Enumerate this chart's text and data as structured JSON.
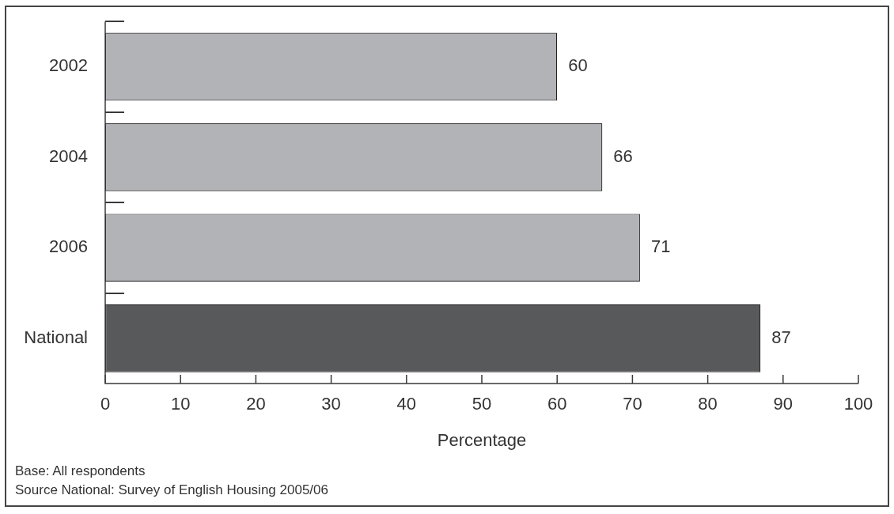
{
  "chart_data": {
    "type": "bar",
    "orientation": "horizontal",
    "categories": [
      "2002",
      "2004",
      "2006",
      "National"
    ],
    "values": [
      60,
      66,
      71,
      87
    ],
    "colors": [
      "#b1b3b6",
      "#b1b3b6",
      "#b1b3b6",
      "#58595b"
    ],
    "xlim": [
      0,
      100
    ],
    "xticks": [
      0,
      10,
      20,
      30,
      40,
      50,
      60,
      70,
      80,
      90,
      100
    ],
    "xlabel": "Percentage",
    "data_labels": true,
    "annotations": [
      "Base: All respondents",
      "Source National: Survey of English Housing 2005/06"
    ]
  }
}
